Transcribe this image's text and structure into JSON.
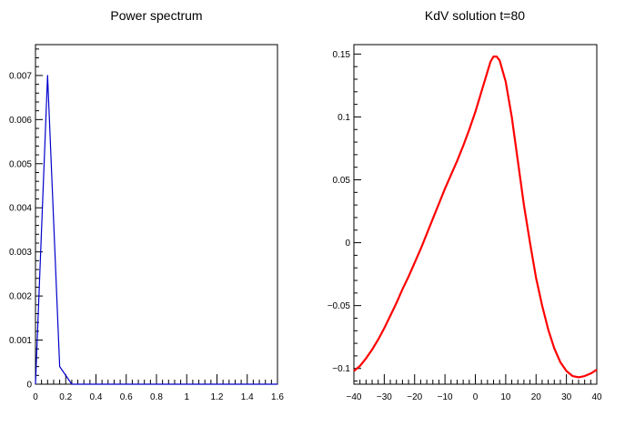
{
  "chart_data": [
    {
      "type": "line",
      "title": "Power spectrum",
      "xlabel": "",
      "ylabel": "",
      "xlim": [
        0,
        1.6
      ],
      "ylim": [
        0,
        0.0077
      ],
      "grid": false,
      "x_ticks": [
        0,
        0.2,
        0.4,
        0.6,
        0.8,
        1,
        1.2,
        1.4,
        1.6
      ],
      "y_ticks": [
        0,
        0.001,
        0.002,
        0.003,
        0.004,
        0.005,
        0.006,
        0.007
      ],
      "x_tick_labels": [
        "0",
        "0.2",
        "0.4",
        "0.6",
        "0.8",
        "1",
        "1.2",
        "1.4",
        "1.6"
      ],
      "y_tick_labels": [
        "0",
        "0.001",
        "0.002",
        "0.003",
        "0.004",
        "0.005",
        "0.006",
        "0.007"
      ],
      "series": [
        {
          "color": "#0000cc",
          "x": [
            0,
            0.08,
            0.16,
            0.24,
            0.32,
            0.4,
            0.6,
            0.8,
            1.0,
            1.2,
            1.4,
            1.6
          ],
          "y": [
            0,
            0.007,
            0.0004,
            0.0,
            0.0,
            0.0,
            0.0,
            0.0,
            0.0,
            0.0,
            0.0,
            0.0
          ]
        }
      ]
    },
    {
      "type": "line",
      "title": "KdV solution t=80",
      "xlabel": "",
      "ylabel": "",
      "xlim": [
        -40,
        40
      ],
      "ylim": [
        -0.1125,
        0.1575
      ],
      "grid": false,
      "x_ticks": [
        -40,
        -30,
        -20,
        -10,
        0,
        10,
        20,
        30,
        40
      ],
      "y_ticks": [
        -0.1,
        -0.05,
        0,
        0.05,
        0.1,
        0.15
      ],
      "x_tick_labels": [
        "−40",
        "−30",
        "−20",
        "−10",
        "0",
        "10",
        "20",
        "30",
        "40"
      ],
      "y_tick_labels": [
        "−0.1",
        "−0.05",
        "0",
        "0.05",
        "0.1",
        "0.15"
      ],
      "series": [
        {
          "color": "#ff0000",
          "x": [
            -40,
            -38,
            -36,
            -34,
            -32,
            -30,
            -28,
            -26,
            -24,
            -22,
            -20,
            -18,
            -16,
            -14,
            -12,
            -10,
            -8,
            -6,
            -4,
            -2,
            0,
            2,
            4,
            5,
            6,
            7,
            8,
            10,
            12,
            14,
            16,
            18,
            20,
            22,
            24,
            26,
            28,
            30,
            32,
            34,
            36,
            38,
            40
          ],
          "y": [
            -0.102,
            -0.098,
            -0.092,
            -0.085,
            -0.077,
            -0.068,
            -0.058,
            -0.048,
            -0.037,
            -0.027,
            -0.016,
            -0.005,
            0.007,
            0.019,
            0.031,
            0.043,
            0.054,
            0.065,
            0.077,
            0.09,
            0.104,
            0.12,
            0.136,
            0.144,
            0.148,
            0.148,
            0.145,
            0.128,
            0.1,
            0.065,
            0.03,
            0.0,
            -0.028,
            -0.05,
            -0.069,
            -0.084,
            -0.095,
            -0.102,
            -0.106,
            -0.107,
            -0.106,
            -0.104,
            -0.101
          ]
        }
      ]
    }
  ]
}
